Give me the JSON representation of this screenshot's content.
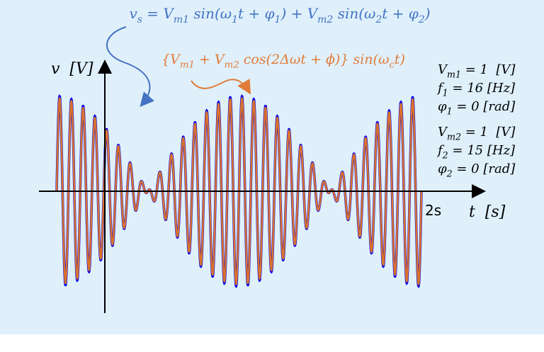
{
  "formula_top": [
    {
      "t": "v"
    },
    {
      "t": "s",
      "sub": true
    },
    {
      "t": " = V"
    },
    {
      "t": "m1",
      "sub": true
    },
    {
      "t": " sin(ω"
    },
    {
      "t": "1",
      "sub": true
    },
    {
      "t": "t + φ"
    },
    {
      "t": "1",
      "sub": true
    },
    {
      "t": ") + V"
    },
    {
      "t": "m2",
      "sub": true
    },
    {
      "t": " sin(ω"
    },
    {
      "t": "2",
      "sub": true
    },
    {
      "t": "t + φ"
    },
    {
      "t": "2",
      "sub": true
    },
    {
      "t": ")"
    }
  ],
  "formula_orange": [
    {
      "t": "{V"
    },
    {
      "t": "m1",
      "sub": true
    },
    {
      "t": " + V"
    },
    {
      "t": "m2",
      "sub": true
    },
    {
      "t": " cos(2Δωt + ϕ)} sin(ω"
    },
    {
      "t": "c",
      "sub": true
    },
    {
      "t": "t)"
    }
  ],
  "y_label": [
    {
      "t": "v"
    },
    {
      "t": "  [V]"
    }
  ],
  "x_label": [
    {
      "t": "t"
    },
    {
      "t": "  [s]"
    }
  ],
  "t_end": {
    "value": 2,
    "label": "2s"
  },
  "params": [
    [
      {
        "t": "V"
      },
      {
        "t": "m1",
        "sub": true
      },
      {
        "t": " = "
      },
      {
        "t": 1
      },
      {
        "t": "  [V]"
      }
    ],
    [
      {
        "t": "f"
      },
      {
        "t": "1",
        "sub": true
      },
      {
        "t": " = "
      },
      {
        "t": 16
      },
      {
        "t": " [Hz]"
      }
    ],
    [
      {
        "t": "φ"
      },
      {
        "t": "1",
        "sub": true
      },
      {
        "t": " = "
      },
      {
        "t": 0
      },
      {
        "t": " [rad]"
      }
    ],
    [
      {
        "t": "V"
      },
      {
        "t": "m2",
        "sub": true
      },
      {
        "t": " = "
      },
      {
        "t": 1
      },
      {
        "t": "  [V]"
      }
    ],
    [
      {
        "t": "f"
      },
      {
        "t": "2",
        "sub": true
      },
      {
        "t": " = "
      },
      {
        "t": 15
      },
      {
        "t": " [Hz]"
      }
    ],
    [
      {
        "t": "φ"
      },
      {
        "t": "2",
        "sub": true
      },
      {
        "t": " = "
      },
      {
        "t": 0
      },
      {
        "t": " [rad]"
      }
    ]
  ]
}
